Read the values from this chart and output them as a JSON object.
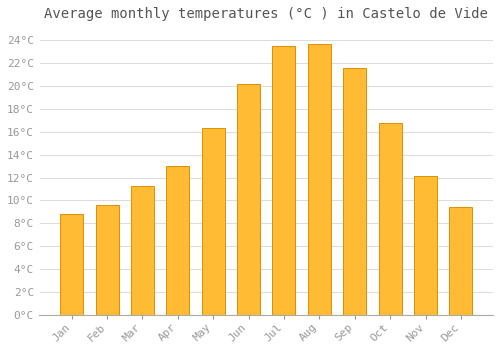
{
  "title": "Average monthly temperatures (°C ) in Castelo de Vide",
  "months": [
    "Jan",
    "Feb",
    "Mar",
    "Apr",
    "May",
    "Jun",
    "Jul",
    "Aug",
    "Sep",
    "Oct",
    "Nov",
    "Dec"
  ],
  "values": [
    8.8,
    9.6,
    11.3,
    13.0,
    16.3,
    20.2,
    23.5,
    23.7,
    21.6,
    16.8,
    12.1,
    9.4
  ],
  "bar_color": "#FFBB33",
  "bar_edge_color": "#E09000",
  "background_color": "#FFFFFF",
  "plot_bg_color": "#FFFFFF",
  "grid_color": "#DDDDDD",
  "ylim": [
    0,
    25
  ],
  "yticks": [
    0,
    2,
    4,
    6,
    8,
    10,
    12,
    14,
    16,
    18,
    20,
    22,
    24
  ],
  "ytick_labels": [
    "0°C",
    "2°C",
    "4°C",
    "6°C",
    "8°C",
    "10°C",
    "12°C",
    "14°C",
    "16°C",
    "18°C",
    "20°C",
    "22°C",
    "24°C"
  ],
  "title_fontsize": 10,
  "tick_fontsize": 8,
  "font_family": "monospace",
  "tick_color": "#999999",
  "title_color": "#555555"
}
